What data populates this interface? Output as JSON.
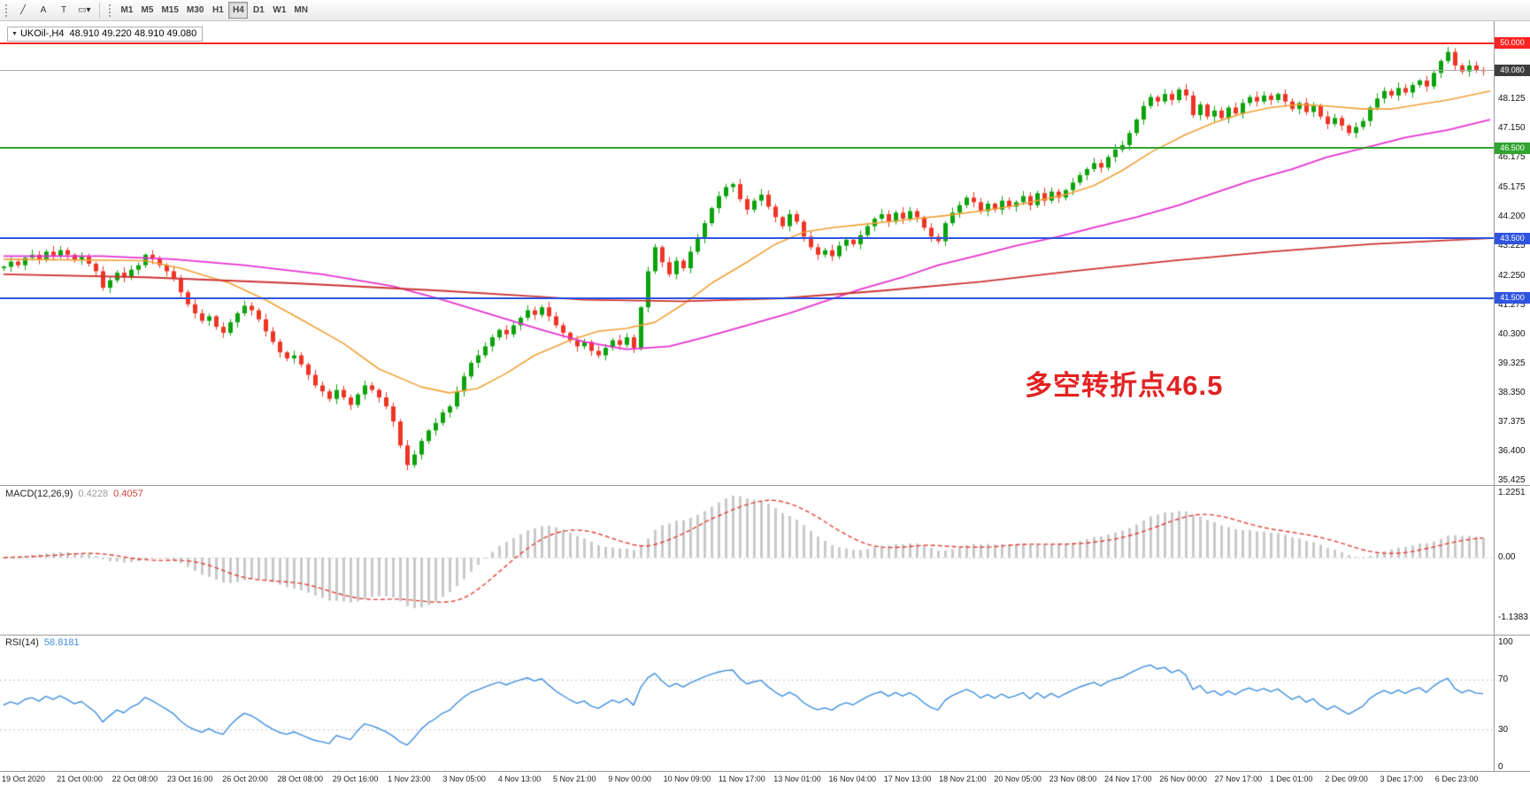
{
  "toolbar": {
    "tools": [
      {
        "name": "trendline-tool-button",
        "glyph": "╱"
      },
      {
        "name": "text-label-tool-button",
        "glyph": "A"
      },
      {
        "name": "text-tool-button",
        "glyph": "T"
      },
      {
        "name": "shapes-tool-button",
        "glyph": "▭▾"
      }
    ],
    "timeframes": [
      {
        "label": "M1",
        "active": false
      },
      {
        "label": "M5",
        "active": false
      },
      {
        "label": "M15",
        "active": false
      },
      {
        "label": "M30",
        "active": false
      },
      {
        "label": "H1",
        "active": false
      },
      {
        "label": "H4",
        "active": true
      },
      {
        "label": "D1",
        "active": false
      },
      {
        "label": "W1",
        "active": false
      },
      {
        "label": "MN",
        "active": false
      }
    ]
  },
  "chart": {
    "collapse_icon": "▼",
    "title_symbol": "UKOil-,H4",
    "title_ohlc": "48.910 49.220 48.910 49.080",
    "annotation": {
      "text": "多空转折点46.5",
      "color": "#e32222"
    }
  },
  "colors": {
    "candle_up": "#0ca30c",
    "candle_down": "#ee3524",
    "macd_histogram": "#c9c9c9",
    "macd_signal": "#e04038",
    "rsi_line": "#3e8ede",
    "level_red": "#ff2222",
    "level_green": "#2fa52f",
    "level_blue": "#2f55e0",
    "current_price_bg": "#3c3c3c"
  },
  "price_scale": {
    "grid_labels": [
      "48.125",
      "47.150",
      "46.175",
      "45.175",
      "44.200",
      "43.225",
      "42.250",
      "41.275",
      "40.300",
      "39.325",
      "38.350",
      "37.375",
      "36.400",
      "35.425"
    ],
    "markers": [
      {
        "label": "50.000",
        "price": 50.0,
        "bg": "#ff2222",
        "line": "#ff2222",
        "line_width": 2
      },
      {
        "label": "49.080",
        "price": 49.08,
        "bg": "#3c3c3c",
        "line": "#a9a9a9",
        "line_width": 1
      },
      {
        "label": "46.500",
        "price": 46.5,
        "bg": "#2fa52f",
        "line": "#2fa52f",
        "line_width": 2
      },
      {
        "label": "43.500",
        "price": 43.5,
        "bg": "#2f55e0",
        "line": "#2f55e0",
        "line_width": 2
      },
      {
        "label": "41.500",
        "price": 41.5,
        "bg": "#2f55e0",
        "line": "#2f55e0",
        "line_width": 2
      }
    ]
  },
  "macd": {
    "label": "MACD(12,26,9)",
    "value_main": "0.4228",
    "value_signal": "0.4057",
    "scale": [
      {
        "label": "1.2251",
        "value": 1.2251
      },
      {
        "label": "0.00",
        "value": 0
      },
      {
        "label": "-1.1383",
        "value": -1.1383
      }
    ]
  },
  "rsi": {
    "label": "RSI(14)",
    "value": "58.8181",
    "levels": [
      70,
      30
    ],
    "scale": [
      {
        "label": "100",
        "value": 100
      },
      {
        "label": "70",
        "value": 70
      },
      {
        "label": "30",
        "value": 30
      },
      {
        "label": "0",
        "value": 0
      }
    ]
  },
  "time_axis": {
    "labels": [
      "19 Oct 2020",
      "21 Oct 00:00",
      "22 Oct 08:00",
      "23 Oct 16:00",
      "26 Oct 20:00",
      "28 Oct 08:00",
      "29 Oct 16:00",
      "1 Nov 23:00",
      "3 Nov 05:00",
      "4 Nov 13:00",
      "5 Nov 21:00",
      "9 Nov 00:00",
      "10 Nov 09:00",
      "11 Nov 17:00",
      "13 Nov 01:00",
      "16 Nov 04:00",
      "17 Nov 13:00",
      "18 Nov 21:00",
      "20 Nov 05:00",
      "23 Nov 08:00",
      "24 Nov 17:00",
      "26 Nov 00:00",
      "27 Nov 17:00",
      "1 Dec 01:00",
      "2 Dec 09:00",
      "3 Dec 17:00",
      "6 Dec 23:00"
    ]
  },
  "chart_data": {
    "type": "candlestick",
    "symbol": "UKOil-",
    "timeframe": "H4",
    "last_ohlc": {
      "open": 48.91,
      "high": 49.22,
      "low": 48.91,
      "close": 49.08
    },
    "ylim": [
      35.28,
      50.72
    ],
    "current_price": 49.08,
    "levels": [
      50.0,
      46.5,
      43.5,
      41.5
    ],
    "open_first": 42.5,
    "closes": [
      42.55,
      42.72,
      42.6,
      42.85,
      42.95,
      42.8,
      43.05,
      42.92,
      43.1,
      42.95,
      42.78,
      42.88,
      42.65,
      42.4,
      41.85,
      42.1,
      42.35,
      42.2,
      42.45,
      42.6,
      42.95,
      42.8,
      42.6,
      42.4,
      42.15,
      41.7,
      41.3,
      41.0,
      40.75,
      40.9,
      40.55,
      40.35,
      40.7,
      41.0,
      41.25,
      41.1,
      40.8,
      40.4,
      40.05,
      39.7,
      39.5,
      39.6,
      39.3,
      38.95,
      38.6,
      38.4,
      38.15,
      38.45,
      38.2,
      37.95,
      38.3,
      38.6,
      38.45,
      38.2,
      37.9,
      37.4,
      36.6,
      35.95,
      36.3,
      36.75,
      37.1,
      37.35,
      37.7,
      37.9,
      38.4,
      38.9,
      39.35,
      39.6,
      39.9,
      40.2,
      40.45,
      40.3,
      40.6,
      40.85,
      41.1,
      40.95,
      41.2,
      40.9,
      40.6,
      40.35,
      40.1,
      39.9,
      40.05,
      39.75,
      39.6,
      39.85,
      40.1,
      39.95,
      40.2,
      39.85,
      41.2,
      42.4,
      43.2,
      42.7,
      42.3,
      42.75,
      42.5,
      43.05,
      43.5,
      44.0,
      44.5,
      44.9,
      45.2,
      45.3,
      44.8,
      44.45,
      44.75,
      44.95,
      44.55,
      44.2,
      43.9,
      44.3,
      44.05,
      43.55,
      43.2,
      42.95,
      43.1,
      42.9,
      43.25,
      43.45,
      43.3,
      43.6,
      43.9,
      44.15,
      44.3,
      44.05,
      44.35,
      44.15,
      44.4,
      44.2,
      43.85,
      43.55,
      43.4,
      44.0,
      44.35,
      44.6,
      44.85,
      44.7,
      44.4,
      44.65,
      44.45,
      44.75,
      44.55,
      44.7,
      44.9,
      44.6,
      45.0,
      44.75,
      45.05,
      44.85,
      45.1,
      45.35,
      45.6,
      45.8,
      46.0,
      45.85,
      46.2,
      46.45,
      46.6,
      47.0,
      47.45,
      47.9,
      48.2,
      48.05,
      48.3,
      48.1,
      48.45,
      48.25,
      47.6,
      47.95,
      47.55,
      47.75,
      47.5,
      47.85,
      47.65,
      48.0,
      48.2,
      48.05,
      48.25,
      48.1,
      48.3,
      48.05,
      47.8,
      48.0,
      47.7,
      47.9,
      47.55,
      47.3,
      47.5,
      47.25,
      47.0,
      47.2,
      47.4,
      47.85,
      48.15,
      48.4,
      48.25,
      48.5,
      48.35,
      48.6,
      48.75,
      48.55,
      49.0,
      49.4,
      49.7,
      49.25,
      49.05,
      49.25,
      49.1,
      49.08
    ],
    "ma_lines": [
      {
        "name": "fast-ma-orange",
        "color": "#efa036",
        "width": 1.6,
        "points": [
          [
            0,
            42.8
          ],
          [
            20,
            42.75
          ],
          [
            25,
            42.5
          ],
          [
            32,
            42.0
          ],
          [
            37,
            41.45
          ],
          [
            42,
            40.8
          ],
          [
            48,
            40.0
          ],
          [
            53,
            39.15
          ],
          [
            59,
            38.55
          ],
          [
            63,
            38.35
          ],
          [
            67,
            38.5
          ],
          [
            71,
            39.0
          ],
          [
            75,
            39.6
          ],
          [
            80,
            40.1
          ],
          [
            84,
            40.4
          ],
          [
            88,
            40.5
          ],
          [
            92,
            40.7
          ],
          [
            96,
            41.3
          ],
          [
            100,
            42.0
          ],
          [
            105,
            42.7
          ],
          [
            109,
            43.3
          ],
          [
            113,
            43.7
          ],
          [
            117,
            43.85
          ],
          [
            121,
            43.95
          ],
          [
            125,
            44.05
          ],
          [
            129,
            44.15
          ],
          [
            133,
            44.25
          ],
          [
            138,
            44.4
          ],
          [
            142,
            44.55
          ],
          [
            146,
            44.75
          ],
          [
            150,
            44.95
          ],
          [
            154,
            45.25
          ],
          [
            158,
            45.75
          ],
          [
            162,
            46.35
          ],
          [
            167,
            46.95
          ],
          [
            171,
            47.35
          ],
          [
            175,
            47.65
          ],
          [
            179,
            47.85
          ],
          [
            183,
            47.95
          ],
          [
            187,
            47.9
          ],
          [
            192,
            47.8
          ],
          [
            196,
            47.8
          ],
          [
            200,
            47.95
          ],
          [
            204,
            48.1
          ],
          [
            208,
            48.3
          ],
          [
            210,
            48.4
          ]
        ]
      },
      {
        "name": "mid-ma-magenta",
        "color": "#e633d1",
        "width": 1.8,
        "points": [
          [
            0,
            42.9
          ],
          [
            14,
            42.9
          ],
          [
            24,
            42.8
          ],
          [
            34,
            42.6
          ],
          [
            45,
            42.3
          ],
          [
            55,
            41.9
          ],
          [
            62,
            41.45
          ],
          [
            69,
            40.95
          ],
          [
            76,
            40.45
          ],
          [
            82,
            40.05
          ],
          [
            88,
            39.8
          ],
          [
            94,
            39.9
          ],
          [
            99,
            40.2
          ],
          [
            105,
            40.6
          ],
          [
            111,
            41.0
          ],
          [
            116,
            41.4
          ],
          [
            121,
            41.8
          ],
          [
            127,
            42.2
          ],
          [
            132,
            42.6
          ],
          [
            138,
            42.95
          ],
          [
            143,
            43.25
          ],
          [
            149,
            43.55
          ],
          [
            154,
            43.85
          ],
          [
            160,
            44.2
          ],
          [
            166,
            44.6
          ],
          [
            171,
            45.0
          ],
          [
            176,
            45.4
          ],
          [
            182,
            45.8
          ],
          [
            187,
            46.2
          ],
          [
            193,
            46.55
          ],
          [
            198,
            46.85
          ],
          [
            204,
            47.1
          ],
          [
            210,
            47.45
          ]
        ]
      },
      {
        "name": "slow-ma-red",
        "color": "#cc3333",
        "width": 1.8,
        "points": [
          [
            0,
            42.3
          ],
          [
            20,
            42.2
          ],
          [
            41,
            42.0
          ],
          [
            62,
            41.75
          ],
          [
            76,
            41.55
          ],
          [
            82,
            41.45
          ],
          [
            96,
            41.4
          ],
          [
            110,
            41.5
          ],
          [
            124,
            41.75
          ],
          [
            138,
            42.05
          ],
          [
            151,
            42.4
          ],
          [
            165,
            42.75
          ],
          [
            179,
            43.05
          ],
          [
            193,
            43.3
          ],
          [
            210,
            43.5
          ]
        ]
      }
    ]
  }
}
